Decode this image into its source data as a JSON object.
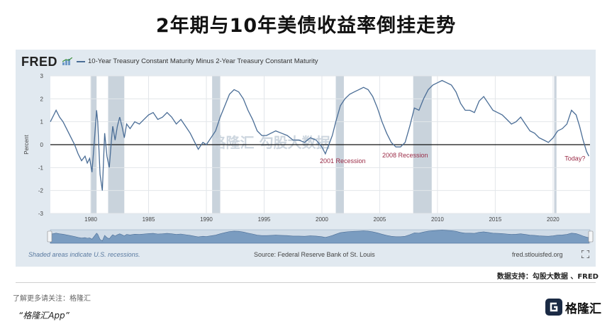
{
  "page": {
    "title": "2年期与10年美债收益率倒挂走势",
    "source_note": "数据支持：勾股大数据 、FRED",
    "promo_text": "了解更多请关注：格隆汇",
    "app_name": "“格隆汇App”",
    "corner_logo_text": "格隆汇"
  },
  "panel": {
    "brand": "FRED",
    "footer_left": "Shaded areas indicate U.S. recessions.",
    "footer_center": "Source: Federal Reserve Bank of St. Louis",
    "footer_right": "fred.stlouisfed.org",
    "watermark": "格隆汇 勾股大数据"
  },
  "colors": {
    "line": "#4a6d96",
    "recession": "#c9d3dc",
    "panel_bg": "#e1e9f0",
    "plot_bg": "#ffffff",
    "annotation": "#9b2c47"
  },
  "chart_data": {
    "type": "line",
    "title": "",
    "xlabel": "",
    "ylabel": "Percent",
    "xlim": [
      1976.5,
      2023.2
    ],
    "ylim": [
      -3,
      3
    ],
    "y_ticks": [
      3,
      2,
      1,
      0,
      -1,
      -2,
      -3
    ],
    "x_ticks": [
      1980,
      1985,
      1990,
      1995,
      2000,
      2005,
      2010,
      2015,
      2020
    ],
    "grid": true,
    "legend": "top-left",
    "series": [
      {
        "name": "10-Year Treasury Constant Maturity Minus 2-Year Treasury Constant Maturity",
        "x": [
          1976.5,
          1976.8,
          1977.0,
          1977.3,
          1977.6,
          1978.0,
          1978.3,
          1978.6,
          1978.9,
          1979.2,
          1979.5,
          1979.7,
          1979.9,
          1980.1,
          1980.3,
          1980.5,
          1980.6,
          1980.8,
          1981.0,
          1981.2,
          1981.4,
          1981.6,
          1981.8,
          1981.9,
          1982.1,
          1982.3,
          1982.5,
          1982.7,
          1982.9,
          1983.1,
          1983.4,
          1983.8,
          1984.2,
          1984.6,
          1985.0,
          1985.4,
          1985.8,
          1986.2,
          1986.6,
          1987.0,
          1987.4,
          1987.8,
          1988.2,
          1988.6,
          1989.0,
          1989.3,
          1989.7,
          1990.0,
          1990.4,
          1990.8,
          1991.2,
          1991.6,
          1992.0,
          1992.4,
          1992.8,
          1993.2,
          1993.6,
          1994.0,
          1994.4,
          1994.8,
          1995.2,
          1995.6,
          1996.0,
          1996.5,
          1997.0,
          1997.5,
          1998.0,
          1998.5,
          1999.0,
          1999.5,
          2000.0,
          2000.3,
          2000.6,
          2000.9,
          2001.2,
          2001.6,
          2002.0,
          2002.4,
          2002.8,
          2003.2,
          2003.6,
          2004.0,
          2004.4,
          2004.8,
          2005.2,
          2005.6,
          2006.0,
          2006.4,
          2006.8,
          2007.2,
          2007.6,
          2008.0,
          2008.4,
          2008.8,
          2009.2,
          2009.6,
          2010.0,
          2010.4,
          2010.8,
          2011.2,
          2011.6,
          2012.0,
          2012.4,
          2012.8,
          2013.2,
          2013.6,
          2014.0,
          2014.4,
          2014.8,
          2015.2,
          2015.6,
          2016.0,
          2016.4,
          2016.8,
          2017.2,
          2017.6,
          2018.0,
          2018.4,
          2018.8,
          2019.2,
          2019.6,
          2020.0,
          2020.4,
          2020.8,
          2021.2,
          2021.6,
          2022.0,
          2022.3,
          2022.6,
          2022.9,
          2023.1
        ],
        "values": [
          1.0,
          1.3,
          1.5,
          1.2,
          1.0,
          0.6,
          0.3,
          0.0,
          -0.4,
          -0.7,
          -0.5,
          -0.8,
          -0.6,
          -1.2,
          0.1,
          1.5,
          1.0,
          -1.3,
          -2.0,
          0.5,
          -0.5,
          -1.0,
          0.3,
          0.8,
          0.2,
          0.8,
          1.2,
          0.8,
          0.3,
          0.9,
          0.7,
          1.0,
          0.9,
          1.1,
          1.3,
          1.4,
          1.1,
          1.2,
          1.4,
          1.2,
          0.9,
          1.1,
          0.8,
          0.5,
          0.1,
          -0.2,
          0.1,
          0.0,
          0.3,
          0.6,
          1.2,
          1.7,
          2.2,
          2.4,
          2.3,
          2.0,
          1.5,
          1.1,
          0.6,
          0.4,
          0.4,
          0.5,
          0.6,
          0.5,
          0.4,
          0.2,
          0.2,
          0.1,
          0.3,
          0.2,
          -0.1,
          -0.4,
          0.0,
          0.4,
          1.0,
          1.7,
          2.0,
          2.2,
          2.3,
          2.4,
          2.5,
          2.4,
          2.1,
          1.6,
          1.0,
          0.5,
          0.1,
          -0.1,
          -0.1,
          0.1,
          0.8,
          1.6,
          1.5,
          2.0,
          2.4,
          2.6,
          2.7,
          2.8,
          2.7,
          2.6,
          2.3,
          1.8,
          1.5,
          1.5,
          1.4,
          1.9,
          2.1,
          1.8,
          1.5,
          1.4,
          1.3,
          1.1,
          0.9,
          1.0,
          1.2,
          0.9,
          0.6,
          0.5,
          0.3,
          0.2,
          0.1,
          0.3,
          0.6,
          0.7,
          0.9,
          1.5,
          1.3,
          0.8,
          0.2,
          -0.3,
          -0.5
        ]
      }
    ],
    "recessions": [
      [
        1980.0,
        1980.5
      ],
      [
        1981.5,
        1982.9
      ],
      [
        1990.5,
        1991.2
      ],
      [
        2001.2,
        2001.9
      ],
      [
        2007.9,
        2009.5
      ],
      [
        2020.1,
        2020.3
      ]
    ],
    "annotations": [
      {
        "text": "2001 Recession",
        "x": 2001.8,
        "y": -0.8
      },
      {
        "text": "2008 Recession",
        "x": 2007.2,
        "y": -0.55
      },
      {
        "text": "Today?",
        "x": 2021.9,
        "y": -0.7
      }
    ]
  }
}
